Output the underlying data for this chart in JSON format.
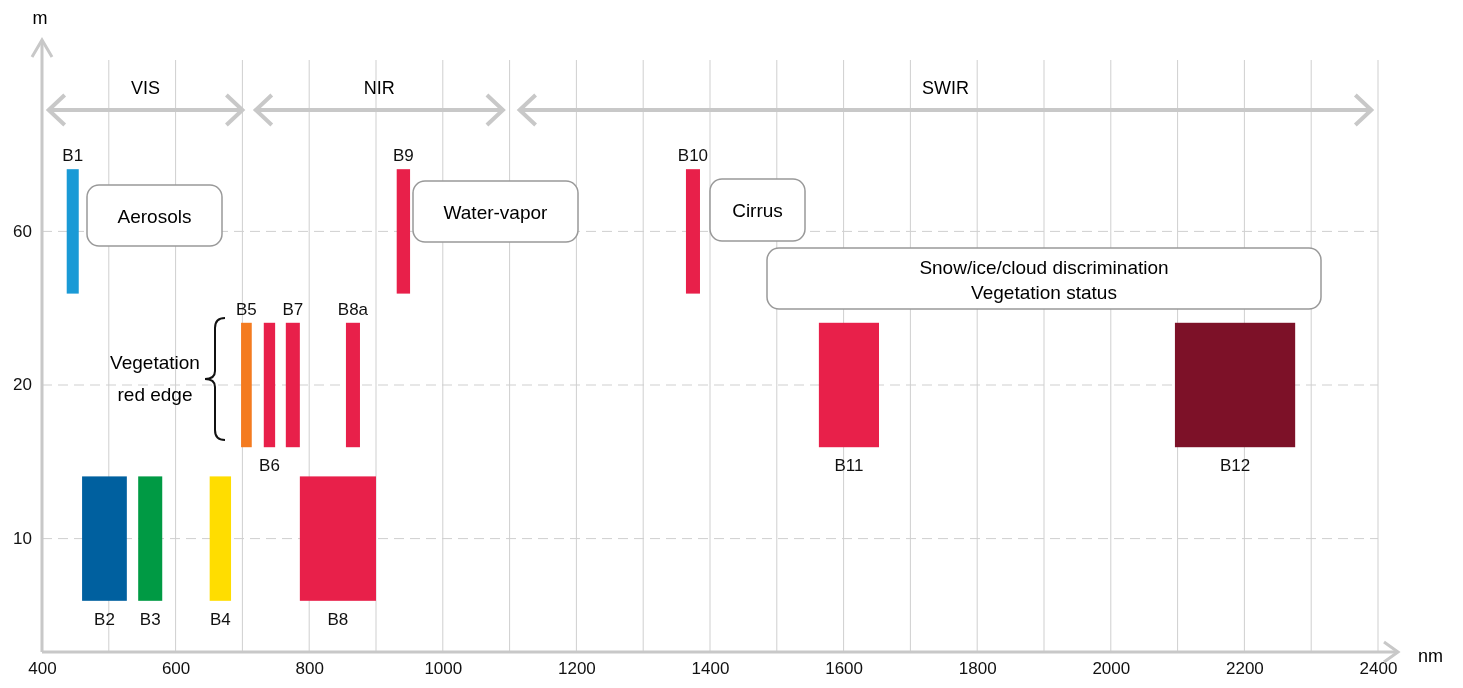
{
  "chart_data": {
    "type": "bar",
    "orientation": "horizontal",
    "xlabel": "nm",
    "categories": [
      "60",
      "20",
      "10"
    ],
    "xlim": [
      400,
      2400
    ],
    "xticks": [
      400,
      {
        "value": 500,
        "label": null
      },
      600,
      {
        "value": 700,
        "label": null
      },
      800,
      {
        "value": 900,
        "label": null
      },
      1000,
      {
        "value": 1100,
        "label": null
      },
      1200,
      {
        "value": 1300,
        "label": null
      },
      1400,
      {
        "value": 1500,
        "label": null
      },
      1600,
      {
        "value": 1700,
        "label": null
      },
      1800,
      {
        "value": 1900,
        "label": null
      },
      2000,
      {
        "value": 2100,
        "label": null
      },
      2200,
      {
        "value": 2300,
        "label": null
      },
      2400
    ],
    "grid": true,
    "series": [
      {
        "name": "B1",
        "color": "#1a9ad6",
        "values": [
          18,
          null,
          null
        ],
        "base": [
          437,
          null,
          null
        ]
      },
      {
        "name": "B2",
        "color": "#00609f",
        "values": [
          null,
          null,
          67
        ],
        "base": [
          null,
          null,
          460
        ]
      },
      {
        "name": "B3",
        "color": "#009a44",
        "values": [
          null,
          null,
          36
        ],
        "base": [
          null,
          null,
          544
        ]
      },
      {
        "name": "B4",
        "color": "#ffdd00",
        "values": [
          null,
          null,
          32
        ],
        "base": [
          null,
          null,
          651
        ]
      },
      {
        "name": "B5",
        "color": "#f47b20",
        "values": [
          null,
          16,
          null
        ],
        "base": [
          null,
          698,
          null
        ]
      },
      {
        "name": "B6",
        "color": "#e8204a",
        "values": [
          null,
          17,
          null
        ],
        "base": [
          null,
          732,
          null
        ]
      },
      {
        "name": "B7",
        "color": "#e8204a",
        "values": [
          null,
          21,
          null
        ],
        "base": [
          null,
          765,
          null
        ]
      },
      {
        "name": "B8",
        "color": "#e8204a",
        "values": [
          null,
          null,
          114
        ],
        "base": [
          null,
          null,
          786
        ]
      },
      {
        "name": "B8a",
        "color": "#e8204a",
        "values": [
          null,
          21,
          null
        ],
        "base": [
          null,
          855,
          null
        ]
      },
      {
        "name": "B9",
        "color": "#e8204a",
        "values": [
          20,
          null,
          null
        ],
        "base": [
          931,
          null,
          null
        ]
      },
      {
        "name": "B10",
        "color": "#e8204a",
        "values": [
          21,
          null,
          null
        ],
        "base": [
          1364,
          null,
          null
        ]
      },
      {
        "name": "B11",
        "color": "#e8204a",
        "values": [
          null,
          90,
          null
        ],
        "base": [
          null,
          1563,
          null
        ]
      },
      {
        "name": "B12",
        "color": "#7d1128",
        "values": [
          null,
          180,
          null
        ],
        "base": [
          null,
          2096,
          null
        ]
      }
    ],
    "annotations": [
      "VIS",
      "NIR",
      "SWIR",
      "Aerosols",
      "Water-vapor",
      "Cirrus",
      "Snow/ice/cloud discrimination\nVegetation status",
      "Vegetation\nred edge",
      "m"
    ]
  }
}
